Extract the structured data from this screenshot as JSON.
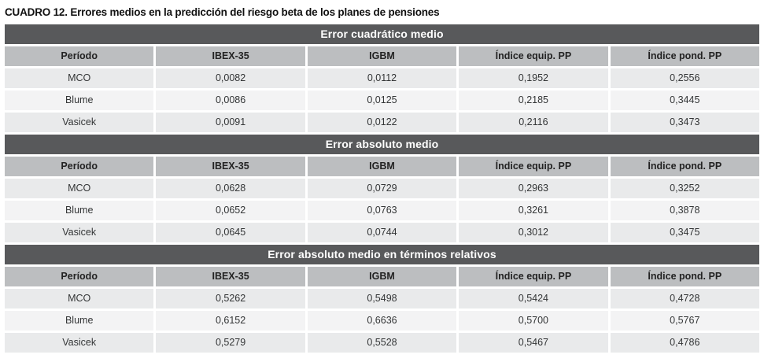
{
  "title": "CUADRO 12. Errores medios en la predicción del riesgo beta de los planes de pensiones",
  "columns": [
    "Período",
    "IBEX-35",
    "IGBM",
    "Índice equip. PP",
    "Índice pond. PP"
  ],
  "sections": [
    {
      "header": "Error cuadrático medio",
      "rows": [
        [
          "MCO",
          "0,0082",
          "0,0112",
          "0,1952",
          "0,2556"
        ],
        [
          "Blume",
          "0,0086",
          "0,0125",
          "0,2185",
          "0,3445"
        ],
        [
          "Vasicek",
          "0,0091",
          "0,0122",
          "0,2116",
          "0,3473"
        ]
      ]
    },
    {
      "header": "Error absoluto medio",
      "rows": [
        [
          "MCO",
          "0,0628",
          "0,0729",
          "0,2963",
          "0,3252"
        ],
        [
          "Blume",
          "0,0652",
          "0,0763",
          "0,3261",
          "0,3878"
        ],
        [
          "Vasicek",
          "0,0645",
          "0,0744",
          "0,3012",
          "0,3475"
        ]
      ]
    },
    {
      "header": "Error absoluto medio en términos relativos",
      "rows": [
        [
          "MCO",
          "0,5262",
          "0,5498",
          "0,5424",
          "0,4728"
        ],
        [
          "Blume",
          "0,6152",
          "0,6636",
          "0,5700",
          "0,5767"
        ],
        [
          "Vasicek",
          "0,5279",
          "0,5528",
          "0,5467",
          "0,4786"
        ]
      ]
    }
  ],
  "colors": {
    "section_header_bg": "#58595b",
    "section_header_text": "#ffffff",
    "column_header_bg": "#bcbec0",
    "row_bg_dark": "#e9eaeb",
    "row_bg_light": "#f3f3f4",
    "text": "#333536"
  }
}
